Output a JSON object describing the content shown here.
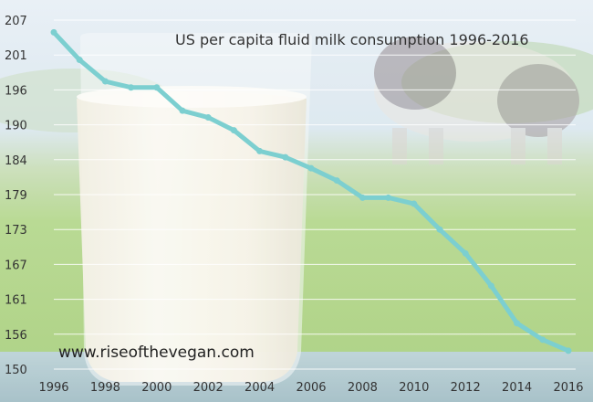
{
  "chart_data": {
    "type": "line",
    "title": "US per capita fluid milk consumption 1996-2016",
    "xlabel": "",
    "ylabel": "",
    "x": [
      1996,
      1997,
      1998,
      1999,
      2000,
      2001,
      2002,
      2003,
      2004,
      2005,
      2006,
      2007,
      2008,
      2009,
      2010,
      2011,
      2012,
      2013,
      2014,
      2015,
      2016
    ],
    "series": [
      {
        "values": [
          205,
          200.5,
          197,
          196,
          196,
          192.2,
          191.1,
          189,
          185.6,
          184.6,
          182.8,
          180.8,
          178,
          178,
          177,
          172.8,
          168.9,
          163.6,
          157.5,
          154.8,
          153
        ]
      }
    ],
    "xticks": [
      "1996",
      "1998",
      "2000",
      "2002",
      "2004",
      "2006",
      "2008",
      "2010",
      "2012",
      "2014",
      "2016"
    ],
    "yticks": [
      "150",
      "156",
      "161",
      "167",
      "173",
      "179",
      "184",
      "190",
      "196",
      "201",
      "207"
    ],
    "ylim": [
      150,
      207
    ],
    "xlim": [
      1996,
      2016
    ],
    "grid": true,
    "legend": "none",
    "colors": {
      "line": "#7ccfd0",
      "grid": "#ffffff",
      "sky": "#dfeaf3",
      "field": "#a9d27c",
      "table": "#a8c4cc"
    }
  },
  "watermark": "www.riseofthevegan.com"
}
